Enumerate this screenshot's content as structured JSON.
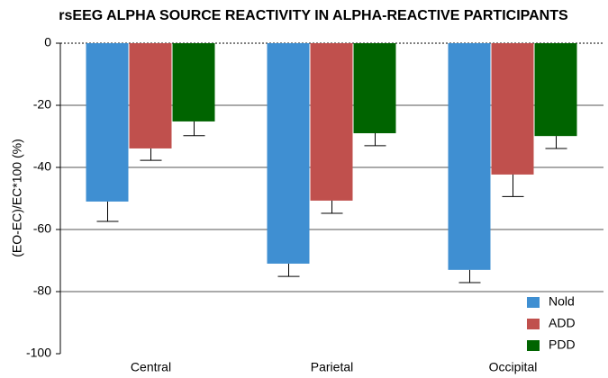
{
  "chart_data": {
    "type": "bar",
    "title": "rsEEG ALPHA SOURCE REACTIVITY IN ALPHA-REACTIVE PARTICIPANTS",
    "y_label": "(EO-EC)/EC*100 (%)",
    "categories": [
      "Central",
      "Parietal",
      "Occipital"
    ],
    "series": [
      {
        "name": "Nold",
        "color": "#3f8fd2",
        "values": [
          -51.0,
          -71.0,
          -73.0
        ],
        "errors": [
          6.4,
          4.1,
          4.1
        ]
      },
      {
        "name": "ADD",
        "color": "#c0504d",
        "values": [
          -33.9,
          -50.7,
          -42.3
        ],
        "errors": [
          3.8,
          4.1,
          7.1
        ]
      },
      {
        "name": "PDD",
        "color": "#006400",
        "values": [
          -25.2,
          -29.0,
          -29.9
        ],
        "errors": [
          4.6,
          4.0,
          4.0
        ]
      }
    ],
    "ylim": [
      -100,
      0
    ],
    "yticks": [
      0,
      -20,
      -40,
      -60,
      -80,
      -100
    ],
    "grid": true,
    "legend": "bottom-right"
  }
}
